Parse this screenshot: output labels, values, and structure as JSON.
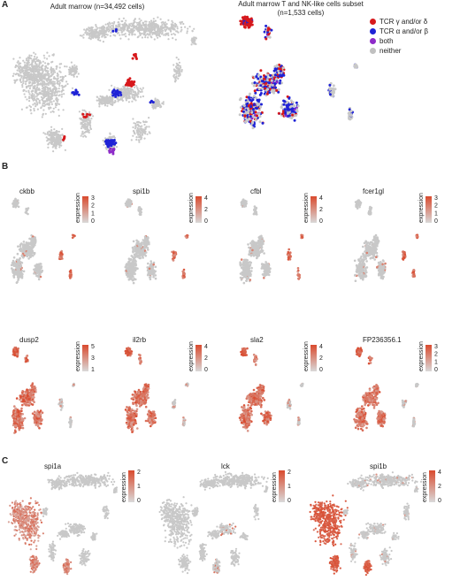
{
  "panel_a": {
    "letter": "A",
    "left_title": "Adult marrow (n=34,492 cells)",
    "right_title_line1": "Adult marrow T and NK-like cells subset",
    "right_title_line2": "(n=1,533 cells)",
    "legend": [
      {
        "label": "TCR γ and/or δ",
        "color": "#d7191c"
      },
      {
        "label": "TCR α and/or β",
        "color": "#1f23d6"
      },
      {
        "label": "both",
        "color": "#8e2bc9"
      },
      {
        "label": "neither",
        "color": "#c0c0c0"
      }
    ]
  },
  "panel_b": {
    "letter": "B",
    "colorbar_title": "expression",
    "row1": [
      {
        "gene": "ckbb",
        "ticks": [
          "3",
          "2",
          "1",
          "0"
        ]
      },
      {
        "gene": "spi1b",
        "ticks": [
          "4",
          "2",
          "0"
        ]
      },
      {
        "gene": "cfbl",
        "ticks": [
          "4",
          "2",
          "0"
        ]
      },
      {
        "gene": "fcer1gl",
        "ticks": [
          "3",
          "2",
          "1",
          "0"
        ]
      }
    ],
    "row2": [
      {
        "gene": "dusp2",
        "ticks": [
          "5",
          "3",
          "1"
        ]
      },
      {
        "gene": "il2rb",
        "ticks": [
          "4",
          "2",
          "0"
        ]
      },
      {
        "gene": "sla2",
        "ticks": [
          "4",
          "2",
          "0"
        ]
      },
      {
        "gene": "FP236356.1",
        "ticks": [
          "3",
          "2",
          "1",
          "0"
        ]
      }
    ]
  },
  "panel_c": {
    "letter": "C",
    "colorbar_title": "expression",
    "plots": [
      {
        "gene": "spi1a",
        "ticks": [
          "2",
          "1",
          "0"
        ]
      },
      {
        "gene": "lck",
        "ticks": [
          "2",
          "1",
          "0"
        ]
      },
      {
        "gene": "spi1b",
        "ticks": [
          "4",
          "2",
          "0"
        ]
      }
    ]
  },
  "colors": {
    "grey": "#c8c8c8",
    "red": "#d94a2e",
    "blue": "#1f23d6",
    "purple": "#8e2bc9",
    "tcr_red": "#d7191c"
  }
}
